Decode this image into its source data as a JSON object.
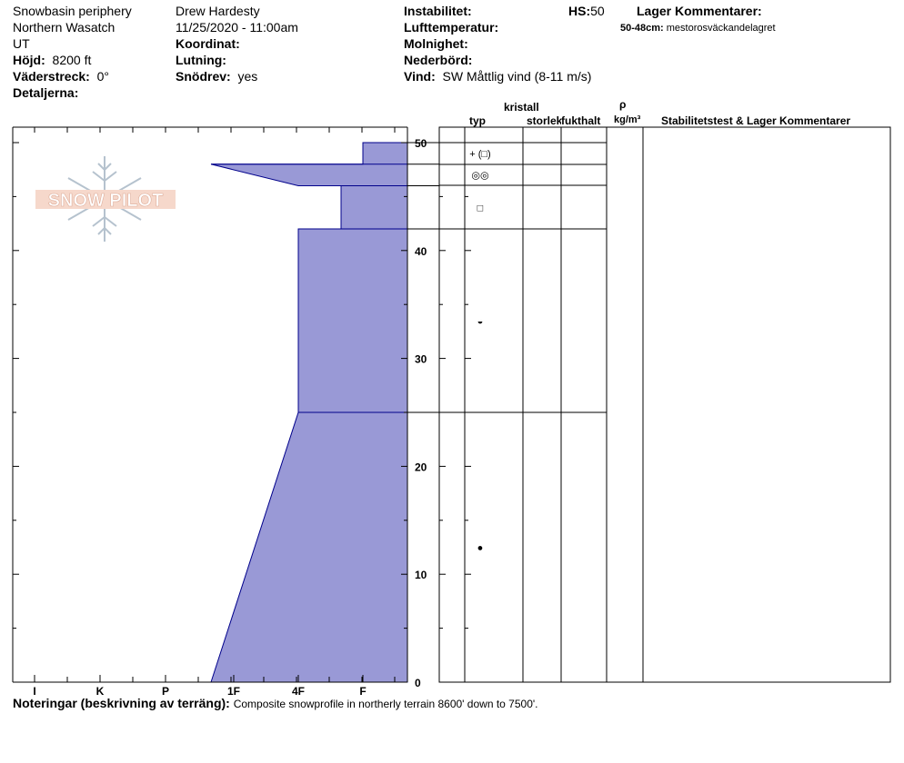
{
  "header": {
    "location_lines": [
      "Snowbasin periphery",
      "Northern Wasatch",
      "UT"
    ],
    "elevation_label": "Höjd:",
    "elevation_value": "8200 ft",
    "aspect_label": "Väderstreck:",
    "aspect_value": "0°",
    "details_label": "Detaljerna:",
    "observer": "Drew Hardesty",
    "datetime": "11/25/2020 - 11:00am",
    "coord_label": "Koordinat:",
    "slope_label": "Lutning:",
    "drift_label": "Snödrev:",
    "drift_value": "yes",
    "instability_label": "Instabilitet:",
    "hs_label": "HS:",
    "hs_value": "50",
    "air_temp_label": "Lufttemperatur:",
    "cloud_label": "Molnighet:",
    "precip_label": "Nederbörd:",
    "wind_label": "Vind:",
    "wind_value": "SW  Måttlig vind (8-11 m/s)",
    "layer_comments_label": "Lager Kommentarer:",
    "layer_comment_range": "50-48cm:",
    "layer_comment_text": "mestorosväckandelagret"
  },
  "columns": {
    "crystal": "kristall",
    "type": "typ",
    "size": "storlek",
    "moisture": "fukthalt",
    "rho": "ρ",
    "density": "kg/m³",
    "stability": "Stabilitetstest & Lager Kommentarer"
  },
  "logo_text": "SNOW PILOT",
  "notes": {
    "label": "Noteringar (beskrivning av terräng):",
    "text": "Composite snowprofile in northerly terrain 8600' down to 7500'."
  },
  "chart_data": {
    "type": "area",
    "title": "",
    "xlabel": "",
    "ylabel": "",
    "ylim": [
      0,
      50
    ],
    "y_ticks": [
      0,
      10,
      20,
      30,
      40,
      50
    ],
    "hardness_ticks": [
      "I",
      "K",
      "P",
      "1F",
      "4F",
      "F"
    ],
    "fill_color": "#9999d6",
    "stroke_color": "#00008b",
    "hardness_profile": [
      {
        "height": 0,
        "hardness": "1F-"
      },
      {
        "height": 25,
        "hardness": "4F"
      },
      {
        "height": 42,
        "hardness": "4F"
      },
      {
        "height": 42,
        "hardness": "4F+"
      },
      {
        "height": 46,
        "hardness": "4F+"
      },
      {
        "height": 46,
        "hardness": "4F"
      },
      {
        "height": 48,
        "hardness": "1F-"
      },
      {
        "height": 48,
        "hardness": "F"
      },
      {
        "height": 50,
        "hardness": "F"
      }
    ],
    "layer_boundaries": [
      50,
      48,
      46,
      42,
      25,
      0
    ],
    "grain_symbols": [
      {
        "height": 49,
        "symbol": "+ (□)"
      },
      {
        "height": 47,
        "symbol": "◎◎"
      },
      {
        "height": 44,
        "symbol": "□"
      },
      {
        "height": 33.5,
        "symbol": "◒"
      },
      {
        "height": 12.5,
        "symbol": "●"
      }
    ]
  }
}
